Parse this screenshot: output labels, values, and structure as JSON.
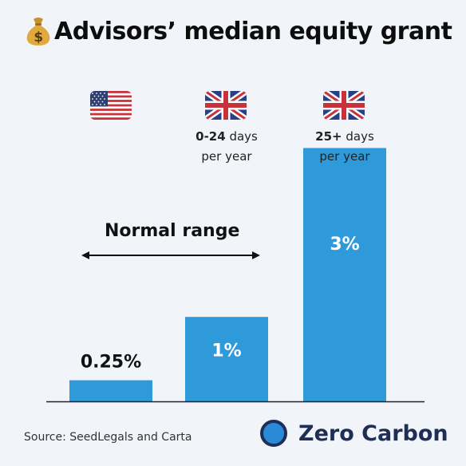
{
  "title": "Advisors’ median equity grant",
  "title_icon": "money-bag-icon",
  "chart_data": {
    "type": "bar",
    "categories": [
      "US",
      "UK 0-24 days per year",
      "UK 25+ days per year"
    ],
    "values": [
      0.25,
      1,
      3
    ],
    "value_labels": [
      "0.25%",
      "1%",
      "3%"
    ],
    "unit": "%",
    "ylim": [
      0,
      3.6
    ],
    "bar_color": "#2f9ad9",
    "grid": false,
    "legend": "none"
  },
  "columns": [
    {
      "flag": "us-flag-icon",
      "label_bold": "",
      "label_rest": "",
      "label_line2": ""
    },
    {
      "flag": "uk-flag-icon",
      "label_bold": "0-24",
      "label_rest": " days",
      "label_line2": "per year"
    },
    {
      "flag": "uk-flag-icon",
      "label_bold": "25+",
      "label_rest": " days",
      "label_line2": "per year"
    }
  ],
  "annotation": {
    "label": "Normal range"
  },
  "source": "Source: SeedLegals and Carta",
  "brand": {
    "name": "Zero Carbon",
    "color": "#1f2e55",
    "accent": "#2b8ad8"
  }
}
